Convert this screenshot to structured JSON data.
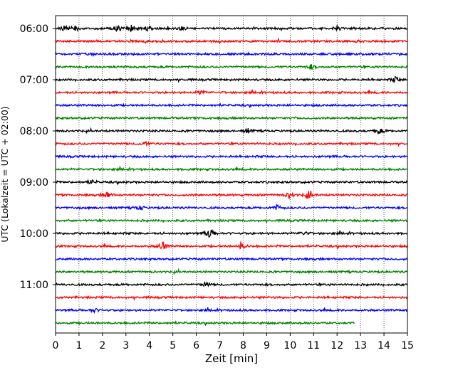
{
  "chart_data": {
    "type": "line",
    "title": "",
    "xlabel": "Zeit  [min]",
    "ylabel": "UTC (Lokalzeit = UTC + 02:00)",
    "xlim": [
      0,
      15
    ],
    "x_ticks": [
      "0",
      "1",
      "2",
      "3",
      "4",
      "5",
      "6",
      "7",
      "8",
      "9",
      "10",
      "11",
      "12",
      "13",
      "14",
      "15"
    ],
    "y_ticks": [
      "06:00",
      "07:00",
      "08:00",
      "09:00",
      "10:00",
      "11:00"
    ],
    "grid": "vertical dotted",
    "trace_colors": [
      "#000000",
      "#ff0000",
      "#0000ff",
      "#008000"
    ],
    "start_time": "06:00",
    "minutes_per_trace": 15,
    "trace_count": 24,
    "last_trace_end_minute": 12.75,
    "events": [
      {
        "trace": 0,
        "minute": 0.35,
        "amp": 0.5
      },
      {
        "trace": 0,
        "minute": 0.85,
        "amp": 0.5
      },
      {
        "trace": 0,
        "minute": 2.65,
        "amp": 0.6
      },
      {
        "trace": 0,
        "minute": 3.25,
        "amp": 0.65
      },
      {
        "trace": 0,
        "minute": 3.95,
        "amp": 0.6
      },
      {
        "trace": 0,
        "minute": 5.4,
        "amp": 0.35
      },
      {
        "trace": 0,
        "minute": 12.0,
        "amp": 0.45
      },
      {
        "trace": 3,
        "minute": 10.9,
        "amp": 0.4
      },
      {
        "trace": 4,
        "minute": 14.5,
        "amp": 0.5
      },
      {
        "trace": 5,
        "minute": 6.2,
        "amp": 0.4
      },
      {
        "trace": 8,
        "minute": 8.2,
        "amp": 0.45
      },
      {
        "trace": 8,
        "minute": 13.8,
        "amp": 0.6
      },
      {
        "trace": 9,
        "minute": 3.8,
        "amp": 0.4
      },
      {
        "trace": 12,
        "minute": 1.55,
        "amp": 0.45
      },
      {
        "trace": 13,
        "minute": 2.2,
        "amp": 0.7
      },
      {
        "trace": 13,
        "minute": 10.0,
        "amp": 0.7
      },
      {
        "trace": 13,
        "minute": 10.8,
        "amp": 0.75
      },
      {
        "trace": 14,
        "minute": 3.6,
        "amp": 0.45
      },
      {
        "trace": 14,
        "minute": 9.45,
        "amp": 0.45
      },
      {
        "trace": 16,
        "minute": 6.6,
        "amp": 1.2
      },
      {
        "trace": 16,
        "minute": 10.6,
        "amp": 0.4
      },
      {
        "trace": 17,
        "minute": 4.55,
        "amp": 0.9
      },
      {
        "trace": 17,
        "minute": 7.9,
        "amp": 0.55
      },
      {
        "trace": 20,
        "minute": 6.4,
        "amp": 0.45
      },
      {
        "trace": 22,
        "minute": 1.65,
        "amp": 0.4
      }
    ]
  }
}
